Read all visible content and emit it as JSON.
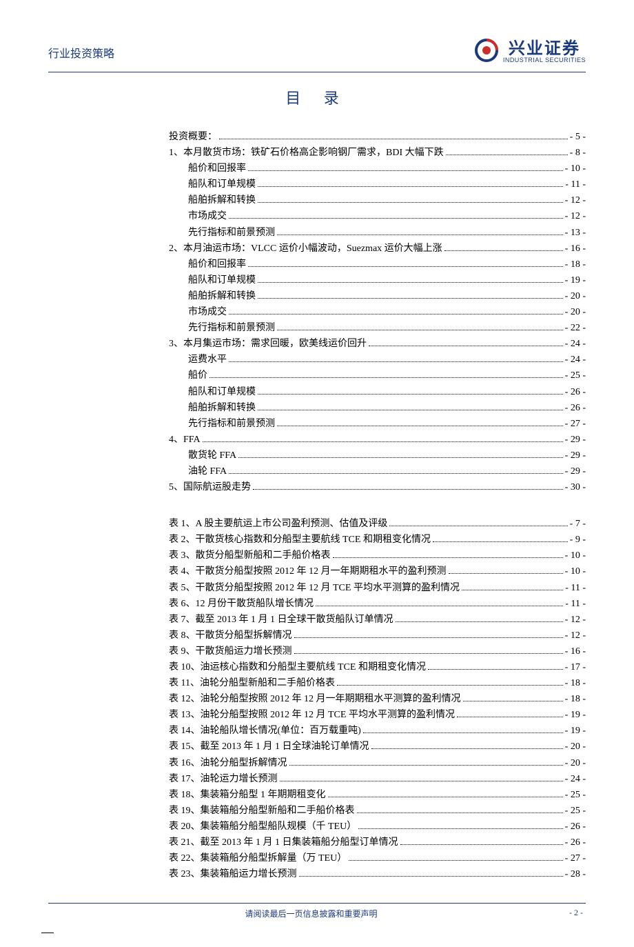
{
  "header": {
    "left_text": "行业投资策略",
    "brand_cn": "兴业证券",
    "brand_en": "INDUSTRIAL SECURITIES",
    "brand_color": "#1b3a7a"
  },
  "title": "目 录",
  "toc_main": [
    {
      "label": "投资概要：",
      "page": "- 5 -",
      "indent": 0
    },
    {
      "label": "1、本月散货市场：铁矿石价格高企影响钢厂需求，BDI 大幅下跌",
      "page": "- 8 -",
      "indent": 0
    },
    {
      "label": "船价和回报率",
      "page": "- 10 -",
      "indent": 1
    },
    {
      "label": "船队和订单规模",
      "page": "- 11 -",
      "indent": 1
    },
    {
      "label": "船舶拆解和转换",
      "page": "- 12 -",
      "indent": 1
    },
    {
      "label": "市场成交",
      "page": "- 12 -",
      "indent": 1
    },
    {
      "label": "先行指标和前景预测",
      "page": "- 13 -",
      "indent": 1
    },
    {
      "label": "2、本月油运市场：VLCC 运价小幅波动，Suezmax 运价大幅上涨",
      "page": "- 16 -",
      "indent": 0
    },
    {
      "label": "船价和回报率",
      "page": "- 18 -",
      "indent": 1
    },
    {
      "label": "船队和订单规模",
      "page": "- 19 -",
      "indent": 1
    },
    {
      "label": "船舶拆解和转换",
      "page": "- 20 -",
      "indent": 1
    },
    {
      "label": "市场成交",
      "page": "- 20 -",
      "indent": 1
    },
    {
      "label": "先行指标和前景预测",
      "page": "- 22 -",
      "indent": 1
    },
    {
      "label": "3、本月集运市场：需求回暖，欧美线运价回升",
      "page": "- 24 -",
      "indent": 0
    },
    {
      "label": "运费水平",
      "page": "- 24 -",
      "indent": 1
    },
    {
      "label": "船价",
      "page": "- 25 -",
      "indent": 1
    },
    {
      "label": "船队和订单规模",
      "page": "- 26 -",
      "indent": 1
    },
    {
      "label": "船舶拆解和转换",
      "page": "- 26 -",
      "indent": 1
    },
    {
      "label": "先行指标和前景预测",
      "page": "- 27 -",
      "indent": 1
    },
    {
      "label": "4、FFA",
      "page": "- 29 -",
      "indent": 0
    },
    {
      "label": "散货轮 FFA",
      "page": "- 29 -",
      "indent": 1
    },
    {
      "label": "油轮 FFA",
      "page": "- 29 -",
      "indent": 1
    },
    {
      "label": "5、国际航运股走势",
      "page": "- 30 -",
      "indent": 0
    }
  ],
  "toc_tables": [
    {
      "label": "表 1、A 股主要航运上市公司盈利预测、估值及评级",
      "page": "- 7 -"
    },
    {
      "label": "表 2、干散货核心指数和分船型主要航线 TCE 和期租变化情况",
      "page": "- 9 -"
    },
    {
      "label": "表 3、散货分船型新船和二手船价格表",
      "page": "- 10 -"
    },
    {
      "label": "表 4、干散货分船型按照 2012 年 12 月一年期期租水平的盈利预测",
      "page": "- 10 -"
    },
    {
      "label": "表 5、干散货分船型按照 2012 年 12 月 TCE 平均水平测算的盈利情况",
      "page": "- 11 -"
    },
    {
      "label": "表 6、12 月份干散货船队增长情况",
      "page": "- 11 -"
    },
    {
      "label": "表 7、截至 2013 年 1 月 1 日全球干散货船队订单情况",
      "page": "- 12 -"
    },
    {
      "label": "表 8、干散货分船型拆解情况",
      "page": "- 12 -"
    },
    {
      "label": "表 9、干散货船运力增长预测",
      "page": "- 16 -"
    },
    {
      "label": "表 10、油运核心指数和分船型主要航线 TCE 和期租变化情况",
      "page": "- 17 -"
    },
    {
      "label": "表 11、油轮分船型新船和二手船价格表",
      "page": "- 18 -"
    },
    {
      "label": "表 12、油轮分船型按照 2012 年 12 月一年期期租水平测算的盈利情况",
      "page": "- 18 -"
    },
    {
      "label": "表 13、油轮分船型按照 2012 年 12 月 TCE 平均水平测算的盈利情况",
      "page": "- 19 -"
    },
    {
      "label": "表 14、油轮船队增长情况(单位：百万载重吨)",
      "page": "- 19 -"
    },
    {
      "label": "表 15、截至 2013 年 1 月 1 日全球油轮订单情况",
      "page": "- 20 -"
    },
    {
      "label": "表 16、油轮分船型拆解情况",
      "page": "- 20 -"
    },
    {
      "label": "表 17、油轮运力增长预测",
      "page": "- 24 -"
    },
    {
      "label": "表 18、集装箱分船型 1 年期期租变化",
      "page": "- 25 -"
    },
    {
      "label": "表 19、集装箱船分船型新船和二手船价格表",
      "page": "- 25 -"
    },
    {
      "label": "表 20、集装箱船分船型船队规模（千 TEU）",
      "page": "- 26 -"
    },
    {
      "label": "表 21、截至 2013 年 1 月 1 日集装箱船分船型订单情况",
      "page": "- 26 -"
    },
    {
      "label": "表 22、集装箱船分船型拆解量（万 TEU）",
      "page": "- 27 -"
    },
    {
      "label": "表 23、集装箱船运力增长预测",
      "page": "- 28 -"
    }
  ],
  "footer": {
    "center_text": "请阅读最后一页信息披露和重要声明",
    "page_num": "- 2 -"
  }
}
